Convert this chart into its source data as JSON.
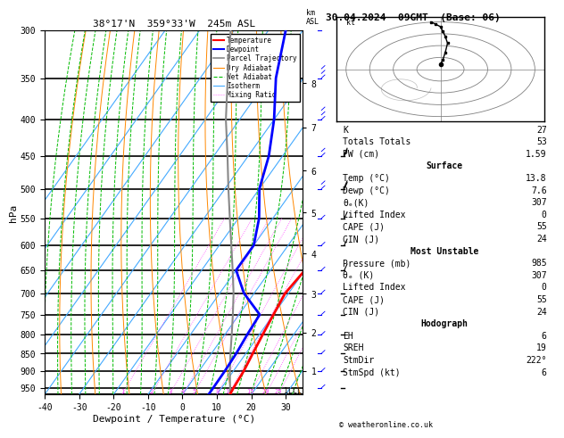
{
  "title_left": "38°17'N  359°33'W  245m ASL",
  "title_right": "30.04.2024  09GMT  (Base: 06)",
  "xlabel": "Dewpoint / Temperature (°C)",
  "ylabel_left": "hPa",
  "p_min": 300,
  "p_max": 970,
  "t_min": -40,
  "t_max": 35,
  "pressure_levels": [
    300,
    350,
    400,
    450,
    500,
    550,
    600,
    650,
    700,
    750,
    800,
    850,
    900,
    950
  ],
  "temp_ticks": [
    -40,
    -30,
    -20,
    -10,
    0,
    10,
    20,
    30
  ],
  "background": "#ffffff",
  "isotherm_color": "#44aaff",
  "dry_adiabat_color": "#ff8800",
  "wet_adiabat_color": "#00bb00",
  "mixing_ratio_color": "#ff44ff",
  "temperature_color": "#ff0000",
  "dewpoint_color": "#0000ff",
  "parcel_color": "#888888",
  "km_ticks": [
    1,
    2,
    3,
    4,
    5,
    6,
    7,
    8
  ],
  "skew_factor": 1.0,
  "temp_profile_p": [
    970,
    950,
    900,
    850,
    800,
    750,
    700,
    650,
    600,
    550,
    500,
    450,
    400,
    350,
    300
  ],
  "temp_profile_t": [
    13.8,
    13.5,
    13.0,
    12.0,
    11.0,
    10.0,
    9.0,
    10.0,
    7.0,
    2.0,
    -4.0,
    -10.0,
    -17.0,
    -25.0,
    -32.0
  ],
  "dewp_profile_p": [
    970,
    950,
    900,
    850,
    800,
    750,
    700,
    650,
    600,
    550,
    500,
    450,
    400,
    350,
    300
  ],
  "dewp_profile_t": [
    7.6,
    7.6,
    7.5,
    7.2,
    6.5,
    6.0,
    -3.0,
    -10.0,
    -10.0,
    -14.0,
    -20.0,
    -24.0,
    -30.0,
    -38.0,
    -45.0
  ],
  "parcel_profile_p": [
    970,
    950,
    900,
    850,
    800,
    750,
    700,
    650,
    600,
    550,
    500,
    450,
    400,
    350,
    300
  ],
  "parcel_profile_t": [
    13.8,
    12.5,
    9.0,
    5.5,
    2.0,
    -1.8,
    -6.0,
    -11.0,
    -16.5,
    -22.5,
    -29.0,
    -36.0,
    -44.0,
    -52.0,
    -61.0
  ],
  "mixing_ratio_values": [
    1,
    2,
    3,
    4,
    5,
    8,
    10,
    15,
    20,
    25
  ],
  "lcl_pressure": 960,
  "wind_p": [
    300,
    350,
    400,
    450,
    500,
    550,
    600,
    650,
    700,
    750,
    800,
    850,
    900,
    950
  ],
  "wind_kt": [
    22,
    18,
    15,
    12,
    10,
    8,
    6,
    5,
    4,
    3,
    3,
    3,
    3,
    4
  ],
  "stats": {
    "K": 27,
    "Totals_Totals": 53,
    "PW_cm": 1.59,
    "Surface_Temp": 13.8,
    "Surface_Dewp": 7.6,
    "Surface_theta_e": 307,
    "Surface_LI": 0,
    "Surface_CAPE": 55,
    "Surface_CIN": 24,
    "MU_Pressure": 985,
    "MU_theta_e": 307,
    "MU_LI": 0,
    "MU_CAPE": 55,
    "MU_CIN": 24,
    "Hodograph_EH": 6,
    "Hodograph_SREH": 19,
    "Hodograph_StmDir": 222,
    "Hodograph_StmSpd": 6
  },
  "copyright": "© weatheronline.co.uk"
}
